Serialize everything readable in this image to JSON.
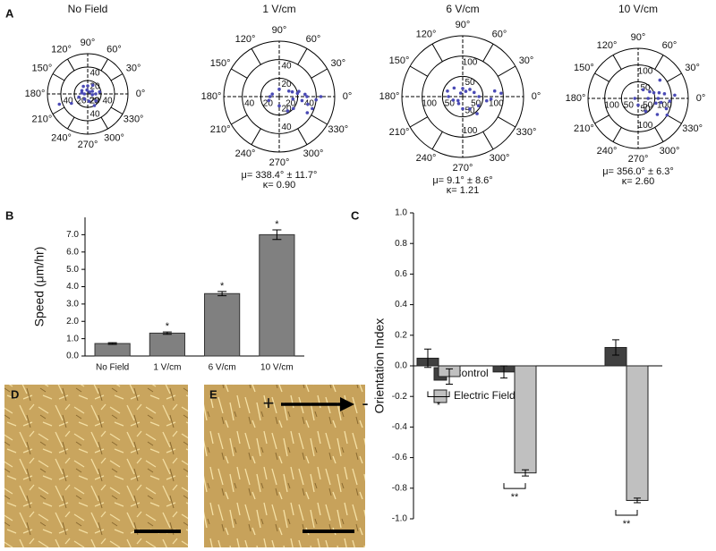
{
  "panel_labels": [
    "A",
    "B",
    "C",
    "D",
    "E"
  ],
  "field_direction": {
    "positive": "+",
    "negative": "-"
  },
  "chart_data": [
    {
      "type": "polar-scatter",
      "title": "No Field",
      "color": "#4a4ab5",
      "theta": [
        0,
        30,
        60,
        100,
        150,
        180,
        200,
        240,
        280,
        320,
        350,
        10,
        45,
        120,
        300,
        210,
        170,
        90,
        200
      ],
      "r": [
        12,
        8,
        15,
        6,
        10,
        5,
        14,
        9,
        11,
        16,
        7,
        18,
        4,
        13,
        20,
        28,
        9,
        12,
        45
      ],
      "rlim": [
        0,
        60
      ],
      "rticks": [
        20,
        40
      ],
      "thetaticks": [
        {
          "value": 0,
          "label": "0°"
        },
        {
          "value": 30,
          "label": "30°"
        },
        {
          "value": 60,
          "label": "60°"
        },
        {
          "value": 90,
          "label": "90°"
        },
        {
          "value": 120,
          "label": "120°"
        },
        {
          "value": 150,
          "label": "150°"
        },
        {
          "value": 180,
          "label": "180°"
        },
        {
          "value": 210,
          "label": "210°"
        },
        {
          "value": 240,
          "label": "240°"
        },
        {
          "value": 270,
          "label": "270°"
        },
        {
          "value": 300,
          "label": "300°"
        },
        {
          "value": 330,
          "label": "330°"
        }
      ]
    },
    {
      "type": "polar-scatter",
      "title": "1 V/cm",
      "color": "#4a4ab5",
      "theta": [
        0,
        350,
        340,
        10,
        20,
        330,
        300,
        30,
        180,
        160,
        200,
        355,
        5,
        345,
        15,
        320,
        270,
        90,
        0,
        350
      ],
      "r": [
        30,
        25,
        38,
        20,
        15,
        35,
        18,
        12,
        10,
        8,
        12,
        40,
        28,
        32,
        22,
        20,
        10,
        8,
        45,
        15
      ],
      "rlim": [
        0,
        60
      ],
      "rticks": [
        20,
        40
      ],
      "thetaticks": [
        {
          "value": 0,
          "label": "0°"
        },
        {
          "value": 30,
          "label": "30°"
        },
        {
          "value": 60,
          "label": "60°"
        },
        {
          "value": 90,
          "label": "90°"
        },
        {
          "value": 120,
          "label": "120°"
        },
        {
          "value": 150,
          "label": "150°"
        },
        {
          "value": 180,
          "label": "180°"
        },
        {
          "value": 210,
          "label": "210°"
        },
        {
          "value": 240,
          "label": "240°"
        },
        {
          "value": 270,
          "label": "270°"
        },
        {
          "value": 300,
          "label": "300°"
        },
        {
          "value": 330,
          "label": "330°"
        }
      ],
      "annotations": [
        "μ= 338.4° ± 11.7°",
        "κ= 0.90"
      ]
    },
    {
      "type": "polar-scatter",
      "title": "6 V/cm",
      "color": "#4a4ab5",
      "theta": [
        0,
        20,
        45,
        90,
        135,
        180,
        200,
        240,
        270,
        300,
        330,
        350,
        10,
        160,
        60,
        310,
        5,
        355,
        220,
        120
      ],
      "r": [
        40,
        30,
        25,
        20,
        30,
        35,
        25,
        20,
        30,
        35,
        45,
        60,
        80,
        40,
        15,
        55,
        95,
        70,
        15,
        10
      ],
      "rlim": [
        0,
        150
      ],
      "rticks": [
        50,
        100
      ],
      "thetaticks": [
        {
          "value": 0,
          "label": "0°"
        },
        {
          "value": 30,
          "label": "30°"
        },
        {
          "value": 60,
          "label": "60°"
        },
        {
          "value": 90,
          "label": "90°"
        },
        {
          "value": 120,
          "label": "120°"
        },
        {
          "value": 150,
          "label": "150°"
        },
        {
          "value": 180,
          "label": "180°"
        },
        {
          "value": 210,
          "label": "210°"
        },
        {
          "value": 240,
          "label": "240°"
        },
        {
          "value": 270,
          "label": "270°"
        },
        {
          "value": 300,
          "label": "300°"
        },
        {
          "value": 330,
          "label": "330°"
        }
      ],
      "annotations": [
        "μ= 9.1° ± 8.6°",
        "κ= 1.21"
      ]
    },
    {
      "type": "polar-scatter",
      "title": "10 V/cm",
      "color": "#4a4ab5",
      "theta": [
        0,
        10,
        350,
        20,
        340,
        330,
        30,
        5,
        355,
        15,
        345,
        300,
        60,
        0,
        320,
        40,
        180,
        270
      ],
      "r": [
        60,
        80,
        70,
        50,
        90,
        100,
        40,
        110,
        95,
        65,
        55,
        45,
        30,
        30,
        75,
        85,
        10,
        20
      ],
      "rlim": [
        0,
        150
      ],
      "rticks": [
        50,
        100
      ],
      "thetaticks": [
        {
          "value": 0,
          "label": "0°"
        },
        {
          "value": 30,
          "label": "30°"
        },
        {
          "value": 60,
          "label": "60°"
        },
        {
          "value": 90,
          "label": "90°"
        },
        {
          "value": 120,
          "label": "120°"
        },
        {
          "value": 150,
          "label": "150°"
        },
        {
          "value": 180,
          "label": "180°"
        },
        {
          "value": 210,
          "label": "210°"
        },
        {
          "value": 240,
          "label": "240°"
        },
        {
          "value": 270,
          "label": "270°"
        },
        {
          "value": 300,
          "label": "300°"
        },
        {
          "value": 330,
          "label": "330°"
        }
      ],
      "annotations": [
        "μ= 356.0° ± 6.3°",
        "κ= 2.60"
      ]
    },
    {
      "type": "bar",
      "ylabel": "Speed (μm/hr)",
      "color": "#808080",
      "categories": [
        "No Field",
        "1 V/cm",
        "6 V/cm",
        "10 V/cm"
      ],
      "values": [
        0.72,
        1.32,
        3.6,
        7.0
      ],
      "errors": [
        0.05,
        0.07,
        0.12,
        0.28
      ],
      "significance": [
        null,
        "*",
        "*",
        "*"
      ],
      "ylim": [
        0,
        8
      ],
      "yticks": [
        {
          "value": 0,
          "label": "0.0"
        },
        {
          "value": 1,
          "label": "1.0"
        },
        {
          "value": 2,
          "label": "2.0"
        },
        {
          "value": 3,
          "label": "3.0"
        },
        {
          "value": 4,
          "label": "4.0"
        },
        {
          "value": 5,
          "label": "5.0"
        },
        {
          "value": 6,
          "label": "6.0"
        },
        {
          "value": 7,
          "label": "7.0"
        }
      ]
    },
    {
      "type": "grouped-bar",
      "ylabel": "Orientation Index",
      "legend": "lower-left",
      "categories": [
        null,
        null,
        null
      ],
      "series": [
        {
          "name": "Control",
          "color": "#404040",
          "values": [
            0.05,
            -0.04,
            0.12
          ],
          "errors": [
            0.06,
            0.04,
            0.05
          ]
        },
        {
          "name": "Electric Field",
          "color": "#c0c0c0",
          "values": [
            -0.07,
            -0.7,
            -0.88
          ],
          "errors": [
            0.05,
            0.02,
            0.015
          ]
        }
      ],
      "significance": [
        "*",
        "**",
        "**"
      ],
      "ylim": [
        -1,
        1
      ],
      "yticks": [
        {
          "value": -1,
          "label": "-1.0"
        },
        -0.8,
        -0.6,
        -0.4,
        -0.2,
        {
          "value": 0,
          "label": "0.0"
        },
        0.2,
        0.4,
        0.6,
        0.8,
        {
          "value": 1,
          "label": "1.0"
        }
      ]
    }
  ]
}
